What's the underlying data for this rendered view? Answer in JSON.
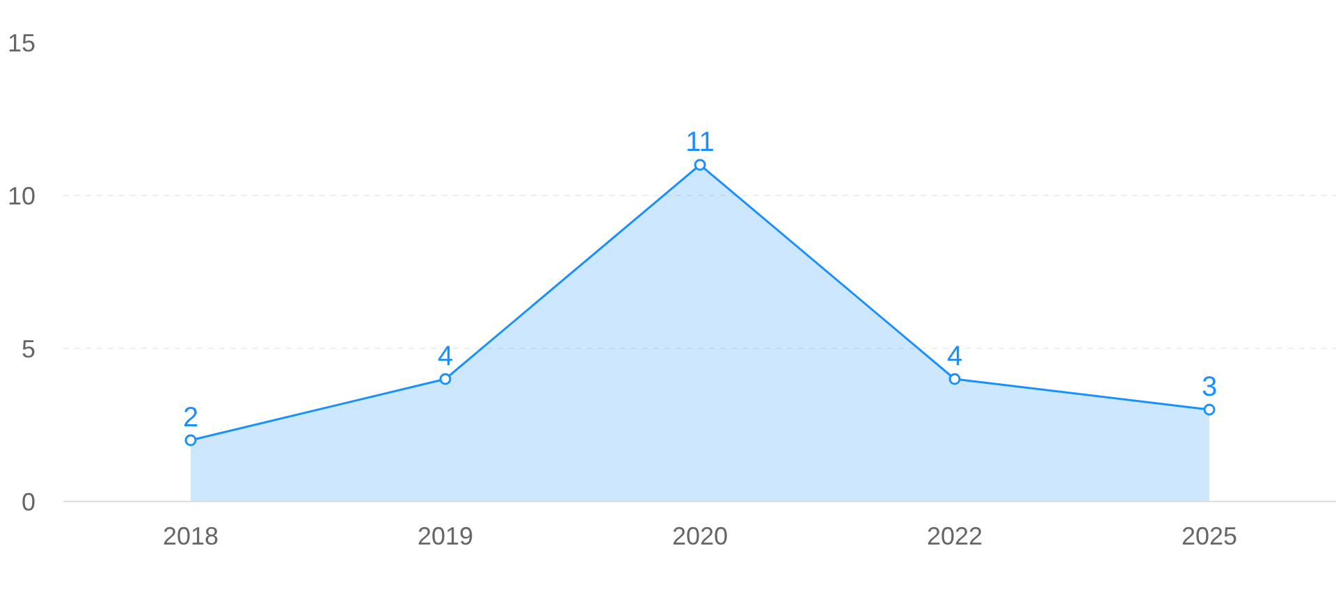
{
  "chart_data": {
    "type": "area",
    "categories": [
      "2018",
      "2019",
      "2020",
      "2022",
      "2025"
    ],
    "series": [
      {
        "color": "#1890ff",
        "values": [
          2,
          4,
          11,
          4,
          3
        ]
      }
    ],
    "ylim": [
      0,
      15
    ],
    "yticks": [
      0,
      5,
      10,
      15
    ],
    "grid": "y",
    "data_labels": true,
    "marker": "circle",
    "line_style": "solid"
  }
}
